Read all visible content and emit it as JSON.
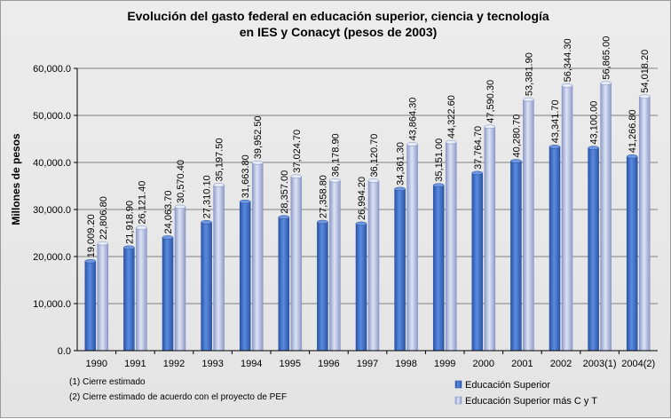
{
  "chart_data": {
    "type": "bar",
    "title_line1": "Evolución  del gasto federal en educación superior, ciencia y tecnología",
    "title_line2": "en IES y Conacyt (pesos de 2003)",
    "xlabel": "",
    "ylabel": "Millones de pesos",
    "ylim": [
      0,
      60000
    ],
    "yticks": [
      0,
      10000,
      20000,
      30000,
      40000,
      50000,
      60000
    ],
    "ytick_labels": [
      "0.0",
      "10,000.0",
      "20,000.0",
      "30,000.0",
      "40,000.0",
      "50,000.0",
      "60,000.0"
    ],
    "grid": true,
    "legend_position": "bottom-right",
    "categories": [
      "1990",
      "1991",
      "1992",
      "1993",
      "1994",
      "1995",
      "1996",
      "1997",
      "1998",
      "1999",
      "2000",
      "2001",
      "2002",
      "2003(1)",
      "2004(2)"
    ],
    "series": [
      {
        "name": "Educación Superior",
        "color": "#3d6fc4",
        "values": [
          19009.2,
          21918.9,
          24063.7,
          27310.1,
          31663.8,
          28357.0,
          27358.8,
          26994.2,
          34361.3,
          35151.0,
          37764.7,
          40280.7,
          43341.7,
          43100.0,
          41266.8
        ],
        "labels": [
          "19,009.20",
          "21,918.90",
          "24,063.70",
          "27,310.10",
          "31,663.80",
          "28,357.00",
          "27,358.80",
          "26,994.20",
          "34,361.30",
          "35,151.00",
          "37,764.70",
          "40,280.70",
          "43,341.70",
          "43,100.00",
          "41,266.80"
        ]
      },
      {
        "name": "Educación Superior más  C y T",
        "color": "#a9b7dc",
        "values": [
          22806.8,
          26121.4,
          30570.4,
          35197.5,
          39952.5,
          37024.7,
          36178.9,
          36120.7,
          43864.3,
          44322.6,
          47590.3,
          53381.9,
          56344.3,
          56865.0,
          54018.2
        ],
        "labels": [
          "22,806.80",
          "26,121.40",
          "30,570.40",
          "35,197.50",
          "39,952.50",
          "37,024.70",
          "36,178.90",
          "36,120.70",
          "43,864.30",
          "44,322.60",
          "47,590.30",
          "53,381.90",
          "56,344.30",
          "56,865.00",
          "54,018.20"
        ]
      }
    ],
    "notes": [
      "(1) Cierre estimado",
      "(2) Cierre estimado de acuerdo con el proyecto de PEF"
    ]
  }
}
